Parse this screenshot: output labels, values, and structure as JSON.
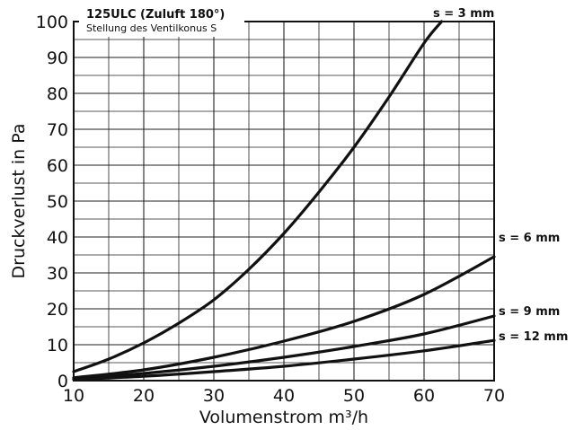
{
  "chart_data": {
    "type": "line",
    "title": "125ULC (Zuluft 180°)",
    "subtitle": "Stellung des Ventilkonus S",
    "xlabel": "Volumenstrom m³/h",
    "ylabel": "Druckverlust in Pa",
    "xlim": [
      10,
      70
    ],
    "ylim": [
      0,
      100
    ],
    "x_ticks": [
      "10",
      "20",
      "30",
      "40",
      "50",
      "60",
      "70"
    ],
    "y_ticks": [
      "0",
      "10",
      "20",
      "30",
      "40",
      "50",
      "60",
      "70",
      "80",
      "90",
      "100"
    ],
    "grid": true,
    "series": [
      {
        "name": "s = 3 mm",
        "x": [
          10,
          15,
          20,
          25,
          30,
          35,
          40,
          45,
          50,
          55,
          60,
          62.5
        ],
        "y": [
          2.5,
          6,
          10.5,
          16,
          22.5,
          31,
          41,
          52.5,
          65,
          79,
          94,
          100
        ]
      },
      {
        "name": "s = 6 mm",
        "x": [
          10,
          20,
          30,
          40,
          50,
          60,
          70
        ],
        "y": [
          0.8,
          3,
          6.5,
          11,
          16.5,
          24,
          34.5
        ]
      },
      {
        "name": "s = 9 mm",
        "x": [
          10,
          20,
          30,
          40,
          50,
          60,
          70
        ],
        "y": [
          0.5,
          2,
          4,
          6.5,
          9.5,
          13,
          18
        ]
      },
      {
        "name": "s = 12 mm",
        "x": [
          10,
          20,
          30,
          40,
          50,
          60,
          70
        ],
        "y": [
          0.3,
          1.2,
          2.5,
          4,
          6,
          8.3,
          11.2
        ]
      }
    ]
  }
}
